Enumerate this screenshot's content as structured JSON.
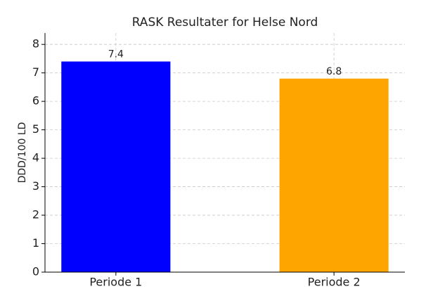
{
  "chart_data": {
    "type": "bar",
    "title": "RASK Resultater for Helse Nord",
    "ylabel": "DDD/100 LD",
    "categories": [
      "Periode 1",
      "Periode 2"
    ],
    "values": [
      7.4,
      6.8
    ],
    "colors": [
      "#0000ff",
      "#ffa500"
    ],
    "ylim": [
      0,
      8.4
    ],
    "yticks": [
      0,
      1,
      2,
      3,
      4,
      5,
      6,
      7,
      8
    ],
    "grid": true
  }
}
